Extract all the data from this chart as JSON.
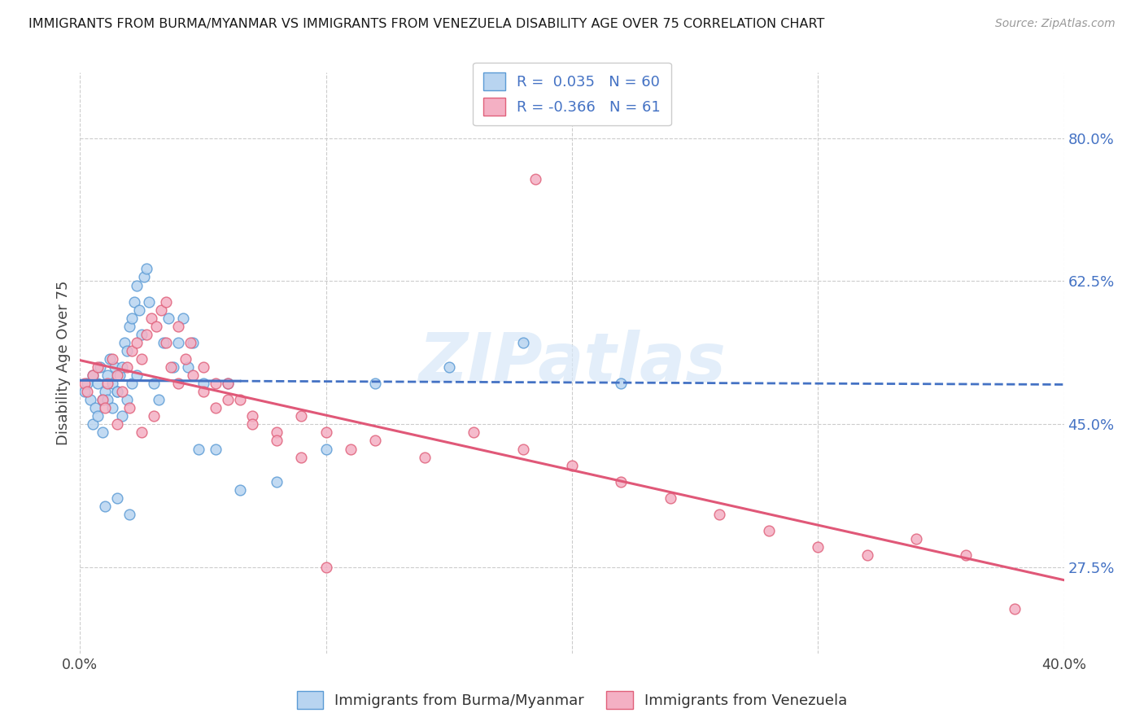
{
  "title": "IMMIGRANTS FROM BURMA/MYANMAR VS IMMIGRANTS FROM VENEZUELA DISABILITY AGE OVER 75 CORRELATION CHART",
  "source": "Source: ZipAtlas.com",
  "ylabel": "Disability Age Over 75",
  "xlim": [
    0.0,
    0.4
  ],
  "ylim": [
    0.17,
    0.88
  ],
  "right_yticks": [
    0.275,
    0.45,
    0.625,
    0.8
  ],
  "right_yticklabels": [
    "27.5%",
    "45.0%",
    "62.5%",
    "80.0%"
  ],
  "R_burma": 0.035,
  "N_burma": 60,
  "R_venezuela": -0.366,
  "N_venezuela": 61,
  "color_burma_fill": "#b8d4f0",
  "color_burma_edge": "#5b9bd5",
  "color_venezuela_fill": "#f4b0c4",
  "color_venezuela_edge": "#e0607a",
  "color_blue_line": "#4472c4",
  "color_pink_line": "#e05878",
  "color_axis_blue": "#4472c4",
  "watermark": "ZIPatlas",
  "watermark_color": "#d8e8f8",
  "burma_x": [
    0.002,
    0.003,
    0.004,
    0.005,
    0.006,
    0.007,
    0.008,
    0.009,
    0.01,
    0.011,
    0.012,
    0.013,
    0.014,
    0.015,
    0.016,
    0.017,
    0.018,
    0.019,
    0.02,
    0.021,
    0.022,
    0.023,
    0.024,
    0.025,
    0.026,
    0.027,
    0.028,
    0.03,
    0.032,
    0.034,
    0.036,
    0.038,
    0.04,
    0.042,
    0.044,
    0.046,
    0.048,
    0.05,
    0.055,
    0.06,
    0.005,
    0.007,
    0.009,
    0.011,
    0.013,
    0.015,
    0.017,
    0.019,
    0.021,
    0.023,
    0.065,
    0.08,
    0.1,
    0.12,
    0.15,
    0.18,
    0.22,
    0.01,
    0.015,
    0.02
  ],
  "burma_y": [
    0.49,
    0.5,
    0.48,
    0.51,
    0.47,
    0.5,
    0.52,
    0.48,
    0.49,
    0.51,
    0.53,
    0.5,
    0.52,
    0.49,
    0.51,
    0.52,
    0.55,
    0.54,
    0.57,
    0.58,
    0.6,
    0.62,
    0.59,
    0.56,
    0.63,
    0.64,
    0.6,
    0.5,
    0.48,
    0.55,
    0.58,
    0.52,
    0.55,
    0.58,
    0.52,
    0.55,
    0.42,
    0.5,
    0.42,
    0.5,
    0.45,
    0.46,
    0.44,
    0.48,
    0.47,
    0.49,
    0.46,
    0.48,
    0.5,
    0.51,
    0.37,
    0.38,
    0.42,
    0.5,
    0.52,
    0.55,
    0.5,
    0.35,
    0.36,
    0.34
  ],
  "venezuela_x": [
    0.002,
    0.003,
    0.005,
    0.007,
    0.009,
    0.011,
    0.013,
    0.015,
    0.017,
    0.019,
    0.021,
    0.023,
    0.025,
    0.027,
    0.029,
    0.031,
    0.033,
    0.035,
    0.037,
    0.04,
    0.043,
    0.046,
    0.05,
    0.055,
    0.06,
    0.065,
    0.07,
    0.08,
    0.09,
    0.1,
    0.11,
    0.12,
    0.14,
    0.16,
    0.18,
    0.2,
    0.22,
    0.24,
    0.26,
    0.28,
    0.3,
    0.32,
    0.34,
    0.36,
    0.38,
    0.01,
    0.015,
    0.02,
    0.025,
    0.03,
    0.185,
    0.035,
    0.04,
    0.045,
    0.05,
    0.055,
    0.06,
    0.07,
    0.08,
    0.09,
    0.1
  ],
  "venezuela_y": [
    0.5,
    0.49,
    0.51,
    0.52,
    0.48,
    0.5,
    0.53,
    0.51,
    0.49,
    0.52,
    0.54,
    0.55,
    0.53,
    0.56,
    0.58,
    0.57,
    0.59,
    0.55,
    0.52,
    0.5,
    0.53,
    0.51,
    0.49,
    0.47,
    0.5,
    0.48,
    0.46,
    0.44,
    0.46,
    0.44,
    0.42,
    0.43,
    0.41,
    0.44,
    0.42,
    0.4,
    0.38,
    0.36,
    0.34,
    0.32,
    0.3,
    0.29,
    0.31,
    0.29,
    0.225,
    0.47,
    0.45,
    0.47,
    0.44,
    0.46,
    0.75,
    0.6,
    0.57,
    0.55,
    0.52,
    0.5,
    0.48,
    0.45,
    0.43,
    0.41,
    0.275
  ]
}
